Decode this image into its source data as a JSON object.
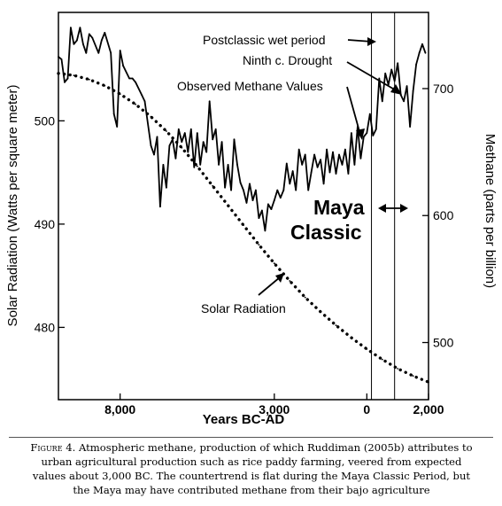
{
  "chart_data": {
    "type": "line",
    "title": "",
    "xlabel": "Years BC-AD",
    "ylabel_left": "Solar Radiation (Watts per square meter)",
    "ylabel_right": "Methane (parts per billion)",
    "xlim": [
      -10000,
      2000
    ],
    "ylim_left": [
      473,
      510.5
    ],
    "ylim_right": [
      455,
      760
    ],
    "x_ticks": [
      {
        "value": -8000,
        "label": "8,000"
      },
      {
        "value": -3000,
        "label": "3,000"
      },
      {
        "value": 0,
        "label": "0"
      },
      {
        "value": 2000,
        "label": "2,000"
      }
    ],
    "y_left_ticks": [
      {
        "value": 480,
        "label": "480"
      },
      {
        "value": 490,
        "label": "490"
      },
      {
        "value": 500,
        "label": "500"
      }
    ],
    "y_right_ticks": [
      {
        "value": 500,
        "label": "500"
      },
      {
        "value": 600,
        "label": "600"
      },
      {
        "value": 700,
        "label": "700"
      }
    ],
    "grid": false,
    "series": [
      {
        "name": "Observed Methane Values",
        "axis": "right",
        "style": "solid",
        "x": [
          -10000,
          -9900,
          -9800,
          -9700,
          -9600,
          -9500,
          -9400,
          -9300,
          -9200,
          -9100,
          -9000,
          -8900,
          -8700,
          -8600,
          -8500,
          -8300,
          -8200,
          -8100,
          -8000,
          -7900,
          -7700,
          -7600,
          -7500,
          -7300,
          -7200,
          -7000,
          -6900,
          -6800,
          -6700,
          -6600,
          -6500,
          -6400,
          -6300,
          -6200,
          -6100,
          -6000,
          -5900,
          -5800,
          -5700,
          -5600,
          -5500,
          -5400,
          -5300,
          -5200,
          -5100,
          -5000,
          -4900,
          -4800,
          -4700,
          -4600,
          -4500,
          -4400,
          -4300,
          -4200,
          -4100,
          -4000,
          -3900,
          -3800,
          -3700,
          -3600,
          -3500,
          -3400,
          -3300,
          -3200,
          -3100,
          -3000,
          -2900,
          -2800,
          -2700,
          -2600,
          -2500,
          -2400,
          -2300,
          -2200,
          -2100,
          -2000,
          -1900,
          -1800,
          -1700,
          -1600,
          -1500,
          -1400,
          -1300,
          -1200,
          -1100,
          -1000,
          -900,
          -800,
          -700,
          -600,
          -500,
          -400,
          -300,
          -200,
          -100,
          0,
          100,
          200,
          300,
          400,
          500,
          600,
          700,
          800,
          900,
          1000,
          1100,
          1200,
          1300,
          1400,
          1500,
          1600,
          1700,
          1800,
          1900
        ],
        "values": [
          725,
          723,
          705,
          708,
          748,
          735,
          738,
          748,
          735,
          728,
          743,
          740,
          728,
          738,
          744,
          728,
          680,
          670,
          730,
          718,
          708,
          708,
          705,
          695,
          690,
          655,
          648,
          662,
          607,
          640,
          622,
          655,
          660,
          645,
          668,
          658,
          665,
          650,
          668,
          638,
          665,
          640,
          658,
          650,
          690,
          660,
          668,
          640,
          658,
          622,
          640,
          620,
          660,
          640,
          626,
          620,
          610,
          625,
          612,
          620,
          598,
          604,
          588,
          609,
          605,
          612,
          620,
          614,
          620,
          641,
          625,
          635,
          620,
          652,
          640,
          648,
          620,
          634,
          648,
          638,
          644,
          625,
          652,
          634,
          650,
          633,
          648,
          640,
          652,
          633,
          665,
          640,
          670,
          645,
          662,
          665,
          680,
          663,
          668,
          708,
          690,
          712,
          703,
          715,
          706,
          720,
          695,
          690,
          702,
          670,
          698,
          719,
          728,
          735,
          728
        ]
      },
      {
        "name": "Solar Radiation",
        "axis": "left",
        "style": "dotted",
        "x": [
          -10000,
          -9500,
          -9000,
          -8500,
          -8000,
          -7500,
          -7000,
          -6500,
          -6000,
          -5500,
          -5000,
          -4500,
          -4000,
          -3500,
          -3000,
          -2500,
          -2000,
          -1500,
          -1000,
          -500,
          0,
          500,
          1000,
          1500,
          2000
        ],
        "values": [
          504.6,
          504.4,
          504.0,
          503.4,
          502.6,
          501.6,
          500.4,
          499.0,
          497.4,
          495.6,
          493.7,
          491.8,
          489.9,
          488.0,
          486.2,
          484.5,
          482.9,
          481.5,
          480.2,
          479.0,
          477.9,
          476.9,
          476.0,
          475.3,
          474.7
        ]
      }
    ],
    "annotations": [
      {
        "text": "Postclassic wet period"
      },
      {
        "text": "Ninth c. Drought"
      },
      {
        "text": "Observed Methane Values"
      },
      {
        "text": "Solar Radiation"
      },
      {
        "text": "Maya"
      },
      {
        "text": "Classic"
      }
    ],
    "vertical_markers": [
      150,
      900
    ]
  },
  "caption": {
    "label": "Figure 4.",
    "text": " Atmospheric methane, production of which Ruddiman (2005b) attributes to urban agricultural production such as rice paddy farming, veered from expected values about 3,000 BC. The countertrend is flat during the Maya Classic Period, but the Maya may have contributed methane from their bajo agriculture"
  }
}
